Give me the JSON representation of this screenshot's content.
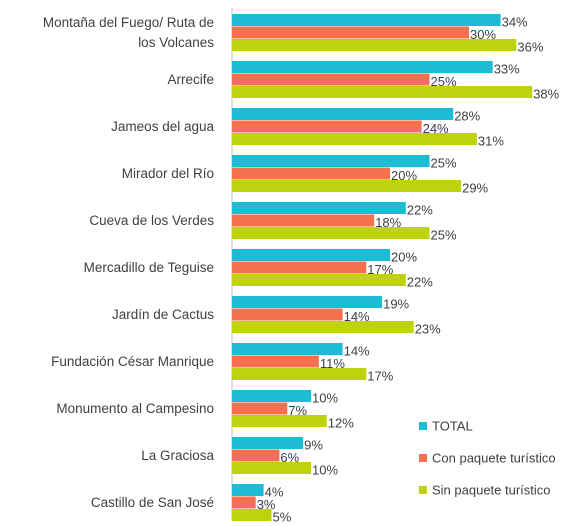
{
  "chart_data": {
    "type": "bar",
    "orientation": "horizontal",
    "categories": [
      "Montaña del Fuego/ Ruta de los Volcanes",
      "Arrecife",
      "Jameos del agua",
      "Mirador del Río",
      "Cueva de los Verdes",
      "Mercadillo de Teguise",
      "Jardín de Cactus",
      "Fundación César Manrique",
      "Monumento al Campesino",
      "La Graciosa",
      "Castillo de San José"
    ],
    "series": [
      {
        "name": "TOTAL",
        "color": "#1cbdd4",
        "values": [
          34,
          33,
          28,
          25,
          22,
          20,
          19,
          14,
          10,
          9,
          4
        ],
        "value_labels": [
          "34%",
          "33%",
          "28%",
          "25%",
          "22%",
          "20%",
          "19%",
          "14%",
          "10%",
          "9%",
          "4%"
        ]
      },
      {
        "name": "Con paquete turístico",
        "color": "#f4704f",
        "values": [
          30,
          25,
          24,
          20,
          18,
          17,
          14,
          11,
          7,
          6,
          3
        ],
        "value_labels": [
          "30%",
          "25%",
          "24%",
          "20%",
          "18%",
          "17%",
          "14%",
          "11%",
          "7%",
          "6%",
          "3%"
        ]
      },
      {
        "name": "Sin paquete turístico",
        "color": "#bfd20e",
        "values": [
          36,
          38,
          31,
          29,
          25,
          22,
          23,
          17,
          12,
          10,
          5
        ],
        "value_labels": [
          "36%",
          "38%",
          "31%",
          "29%",
          "25%",
          "22%",
          "23%",
          "17%",
          "12%",
          "10%",
          "5%"
        ]
      }
    ],
    "legend": "lower right"
  }
}
